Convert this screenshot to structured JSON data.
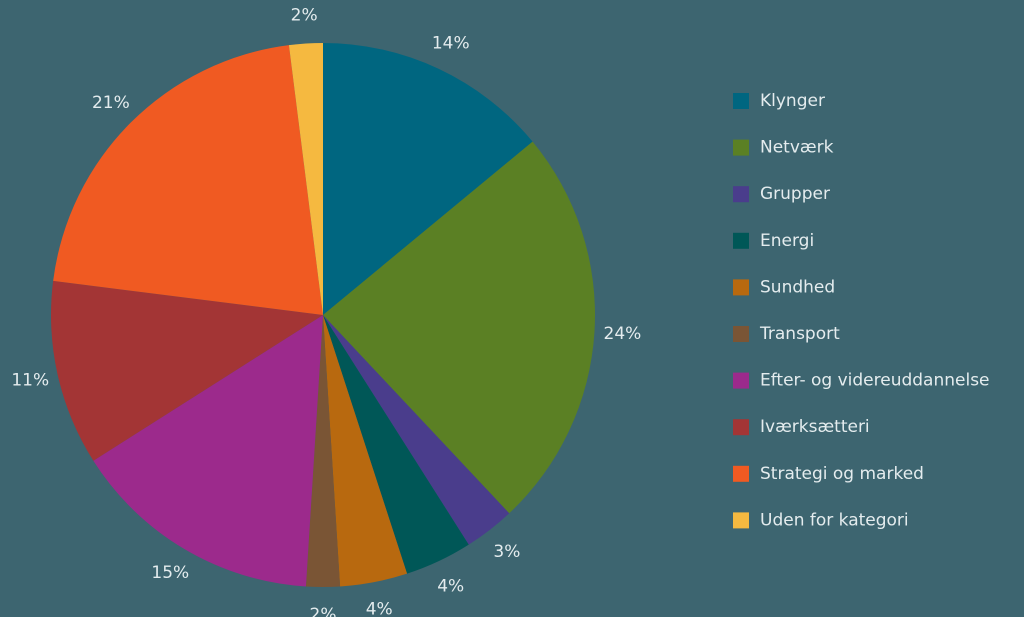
{
  "chart_data": {
    "type": "pie",
    "categories": [
      "Klynger",
      "Netværk",
      "Grupper",
      "Energi",
      "Sundhed",
      "Transport",
      "Efter- og videreuddannelse",
      "Iværksætteri",
      "Strategi og marked",
      "Uden for kategori"
    ],
    "values": [
      14,
      24,
      3,
      4,
      4,
      2,
      15,
      11,
      21,
      2
    ],
    "value_labels": [
      "14%",
      "24%",
      "3%",
      "4%",
      "4%",
      "2%",
      "15%",
      "11%",
      "21%",
      "2%"
    ],
    "colors": [
      "#006680",
      "#5b8024",
      "#4a3d8c",
      "#005757",
      "#b8690f",
      "#7a5535",
      "#9c2a8c",
      "#a33535",
      "#f05a22",
      "#f5b940"
    ],
    "legend": "right"
  }
}
